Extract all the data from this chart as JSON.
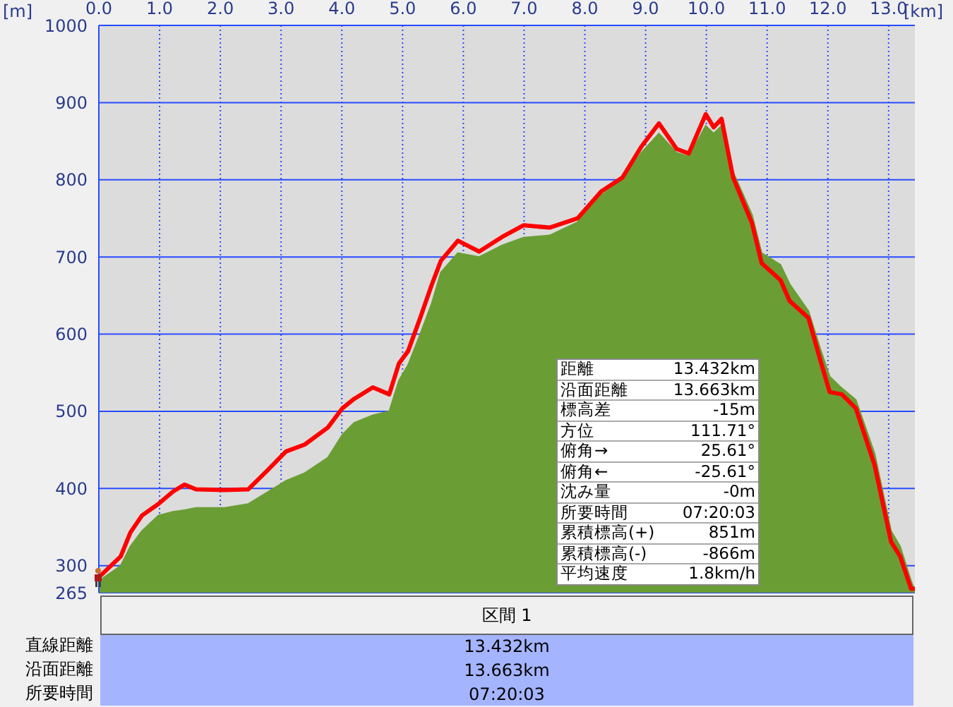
{
  "chart_data": {
    "type": "line",
    "xlabel": "[km]",
    "ylabel": "[m]",
    "x": [
      0,
      0.36,
      0.52,
      0.71,
      0.98,
      1.22,
      1.41,
      1.6,
      2.07,
      2.46,
      2.77,
      3.08,
      3.39,
      3.77,
      4.01,
      4.2,
      4.51,
      4.78,
      4.94,
      5.09,
      5.29,
      5.48,
      5.63,
      5.91,
      6.26,
      6.64,
      6.99,
      7.42,
      7.88,
      8.27,
      8.62,
      8.93,
      9.22,
      9.51,
      9.71,
      9.99,
      10.12,
      10.25,
      10.44,
      10.75,
      10.91,
      11.22,
      11.37,
      11.68,
      11.88,
      12.03,
      12.23,
      12.46,
      12.77,
      13.04,
      13.19,
      13.37,
      13.432
    ],
    "series": [
      {
        "type": "area",
        "color": "#6a9e35",
        "values": [
          280,
          300,
          325,
          345,
          365,
          370,
          372,
          375,
          375,
          380,
          395,
          410,
          420,
          440,
          470,
          485,
          495,
          500,
          540,
          560,
          600,
          640,
          680,
          705,
          700,
          715,
          725,
          728,
          745,
          780,
          800,
          835,
          860,
          835,
          830,
          870,
          860,
          870,
          810,
          755,
          705,
          690,
          665,
          630,
          580,
          545,
          530,
          515,
          445,
          345,
          325,
          280,
          268
        ]
      },
      {
        "color": "#ff0000",
        "values": [
          285,
          312,
          343,
          365,
          380,
          396,
          405,
          399,
          398,
          399,
          423,
          448,
          457,
          479,
          504,
          516,
          531,
          522,
          562,
          578,
          621,
          664,
          695,
          721,
          707,
          726,
          741,
          738,
          750,
          785,
          803,
          843,
          873,
          840,
          834,
          885,
          868,
          879,
          803,
          744,
          692,
          670,
          643,
          621,
          565,
          525,
          522,
          504,
          430,
          331,
          312,
          270,
          270
        ]
      }
    ],
    "xlim": [
      0,
      13.432
    ],
    "xticks": [
      {
        "value": 0,
        "label": "0.0"
      },
      {
        "value": 1,
        "label": "1.0"
      },
      {
        "value": 2,
        "label": "2.0"
      },
      {
        "value": 3,
        "label": "3.0"
      },
      {
        "value": 4,
        "label": "4.0"
      },
      {
        "value": 5,
        "label": "5.0"
      },
      {
        "value": 6,
        "label": "6.0"
      },
      {
        "value": 7,
        "label": "7.0"
      },
      {
        "value": 8,
        "label": "8.0"
      },
      {
        "value": 9,
        "label": "9.0"
      },
      {
        "value": 10,
        "label": "10.0"
      },
      {
        "value": 11,
        "label": "11.0"
      },
      {
        "value": 12,
        "label": "12.0"
      },
      {
        "value": 13,
        "label": "13.0"
      }
    ],
    "ylim": [
      265,
      1000
    ],
    "yticks": [
      265,
      300,
      400,
      500,
      600,
      700,
      800,
      900,
      1000
    ],
    "grid": true,
    "legend": false,
    "annotations": [
      "距離",
      "13.432km",
      "沿面距離",
      "13.663km",
      "標高差",
      "-15m",
      "方位",
      "111.71°",
      "俯角→",
      "25.61°",
      "俯角←",
      "-25.61°",
      "沈み量",
      "-0m",
      "所要時間",
      "07:20:03",
      "累積標高(+)",
      "851m",
      "累積標高(-)",
      "-866m",
      "平均速度",
      "1.8km/h",
      "区間 1",
      "直線距離",
      "13.432km",
      "沿面距離",
      "13.663km",
      "所要時間",
      "07:20:03"
    ]
  }
}
